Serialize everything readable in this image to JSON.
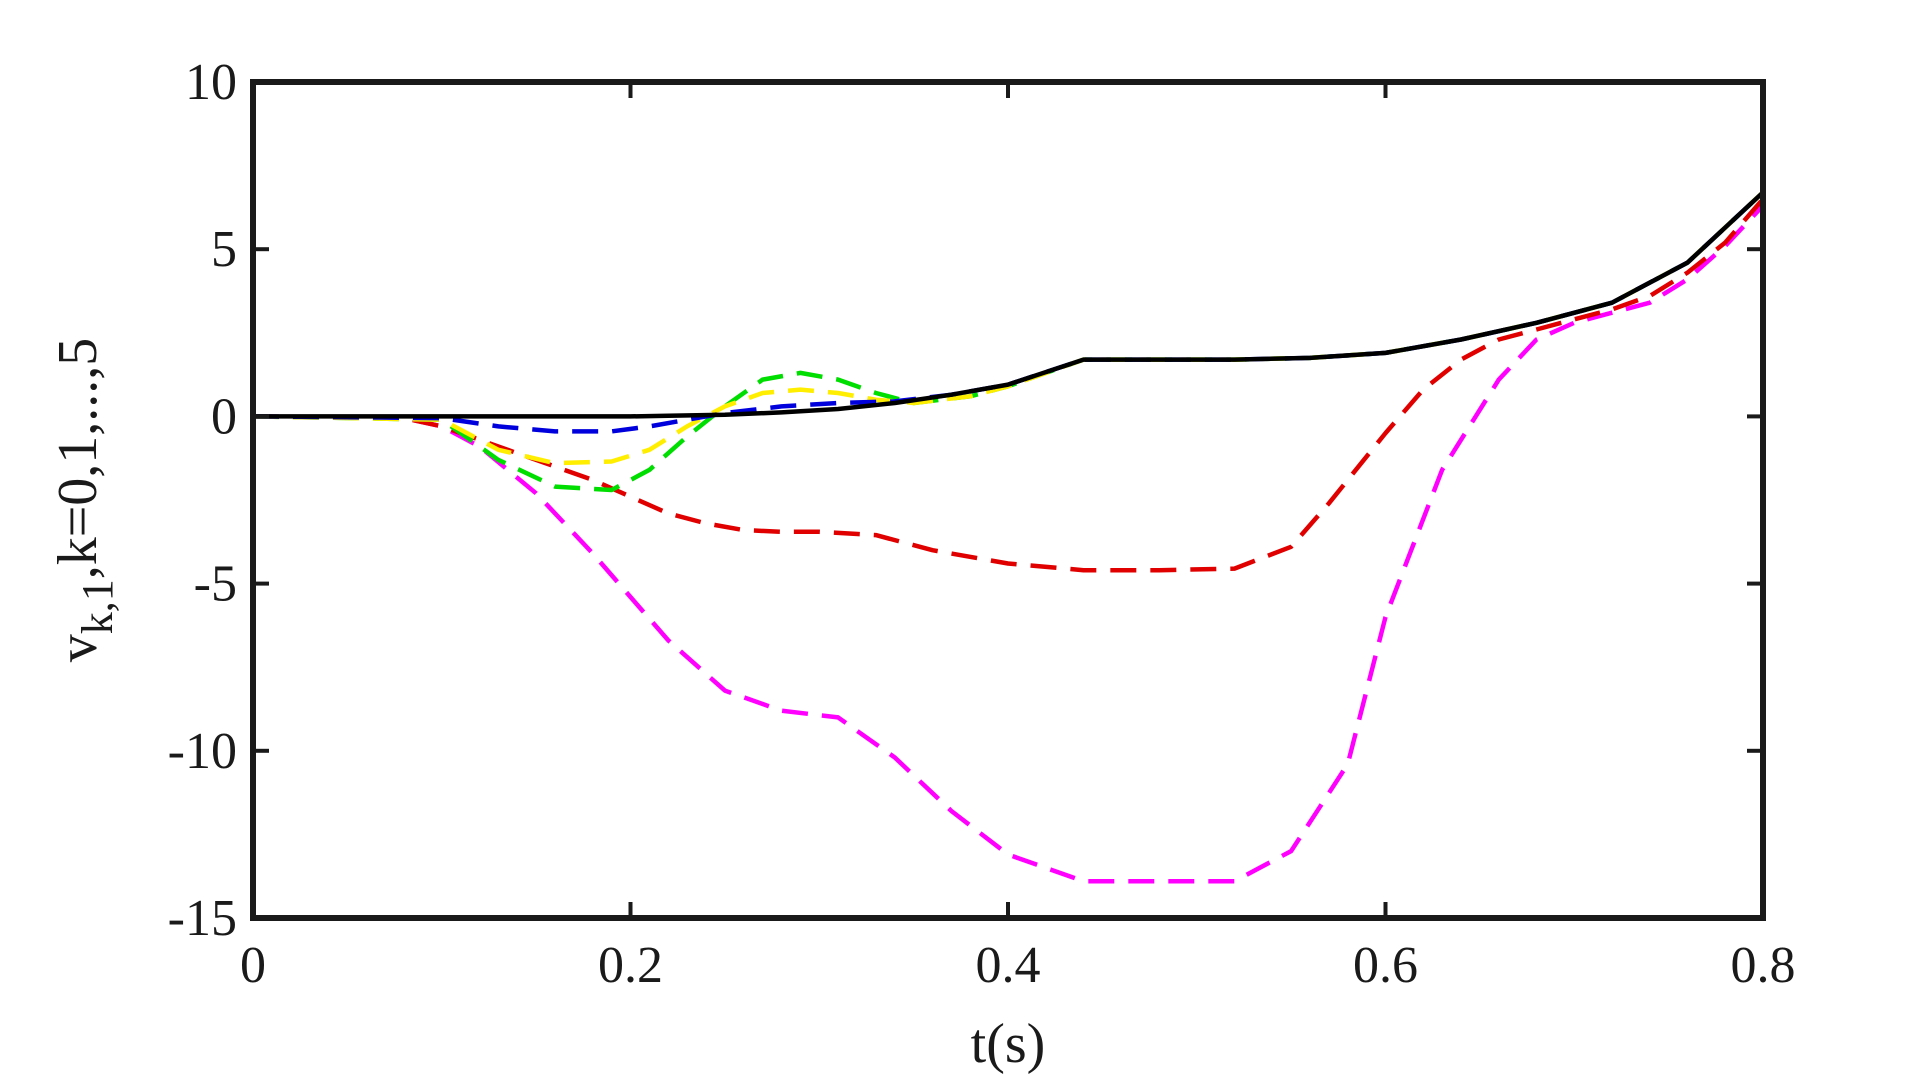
{
  "chart_data": {
    "type": "line",
    "xlabel": "t(s)",
    "ylabel": {
      "base": "v",
      "subscript": "k,1",
      "rest": ",k=0,1,...,5"
    },
    "xlim": [
      0,
      0.8
    ],
    "ylim": [
      -15,
      10
    ],
    "xticks": [
      0,
      0.2,
      0.4,
      0.6,
      0.8
    ],
    "xtick_labels": [
      "0",
      "0.2",
      "0.4",
      "0.6",
      "0.8"
    ],
    "yticks": [
      10,
      5,
      0,
      -5,
      -10,
      -15
    ],
    "ytick_labels": [
      "10",
      "5",
      "0",
      "-5",
      "-10",
      "-15"
    ],
    "grid": false,
    "legend": "none",
    "series": [
      {
        "color": "#ff00ff",
        "style": "dashed",
        "x": [
          0,
          0.08,
          0.1,
          0.12,
          0.15,
          0.18,
          0.2,
          0.22,
          0.25,
          0.28,
          0.31,
          0.34,
          0.37,
          0.4,
          0.44,
          0.48,
          0.52,
          0.55,
          0.58,
          0.6,
          0.63,
          0.66,
          0.68,
          0.7,
          0.72,
          0.74,
          0.76,
          0.78,
          0.8
        ],
        "y": [
          0,
          -0.05,
          -0.3,
          -0.9,
          -2.3,
          -4.1,
          -5.4,
          -6.7,
          -8.2,
          -8.8,
          -9.0,
          -10.2,
          -11.8,
          -13.1,
          -13.9,
          -13.9,
          -13.9,
          -13.0,
          -10.4,
          -6.0,
          -1.6,
          1.1,
          2.3,
          2.8,
          3.1,
          3.4,
          4.1,
          5.1,
          6.3
        ]
      },
      {
        "color": "#e00000",
        "style": "dashed",
        "x": [
          0,
          0.08,
          0.1,
          0.12,
          0.15,
          0.18,
          0.2,
          0.22,
          0.24,
          0.26,
          0.28,
          0.3,
          0.33,
          0.36,
          0.4,
          0.44,
          0.48,
          0.52,
          0.55,
          0.57,
          0.6,
          0.62,
          0.64,
          0.66,
          0.68,
          0.7,
          0.72,
          0.74,
          0.76,
          0.78,
          0.8
        ],
        "y": [
          0,
          -0.05,
          -0.3,
          -0.7,
          -1.3,
          -1.9,
          -2.4,
          -2.9,
          -3.2,
          -3.4,
          -3.45,
          -3.45,
          -3.55,
          -4.0,
          -4.4,
          -4.6,
          -4.6,
          -4.55,
          -3.9,
          -2.6,
          -0.5,
          0.8,
          1.7,
          2.3,
          2.6,
          2.9,
          3.2,
          3.6,
          4.3,
          5.2,
          6.5
        ]
      },
      {
        "color": "#00dd00",
        "style": "dashed",
        "x": [
          0,
          0.1,
          0.13,
          0.16,
          0.19,
          0.21,
          0.23,
          0.25,
          0.27,
          0.29,
          0.31,
          0.33,
          0.35,
          0.38,
          0.4,
          0.44,
          0.48,
          0.52,
          0.56,
          0.6,
          0.64,
          0.68,
          0.72,
          0.76,
          0.8
        ],
        "y": [
          0,
          -0.1,
          -1.3,
          -2.1,
          -2.2,
          -1.6,
          -0.6,
          0.3,
          1.1,
          1.3,
          1.1,
          0.7,
          0.4,
          0.6,
          0.9,
          1.7,
          1.7,
          1.7,
          1.75,
          1.9,
          2.3,
          2.8,
          3.4,
          4.6,
          6.7
        ]
      },
      {
        "color": "#ffee00",
        "style": "dashed",
        "x": [
          0,
          0.1,
          0.13,
          0.16,
          0.19,
          0.21,
          0.23,
          0.25,
          0.27,
          0.29,
          0.31,
          0.33,
          0.35,
          0.38,
          0.4,
          0.44,
          0.48,
          0.52,
          0.56,
          0.6,
          0.64,
          0.68,
          0.72,
          0.76,
          0.8
        ],
        "y": [
          0,
          -0.1,
          -1.0,
          -1.4,
          -1.35,
          -1.0,
          -0.3,
          0.3,
          0.7,
          0.8,
          0.7,
          0.5,
          0.4,
          0.6,
          0.9,
          1.7,
          1.7,
          1.7,
          1.75,
          1.9,
          2.3,
          2.8,
          3.4,
          4.6,
          6.7
        ]
      },
      {
        "color": "#0000dd",
        "style": "dashed",
        "x": [
          0,
          0.1,
          0.13,
          0.16,
          0.19,
          0.21,
          0.23,
          0.25,
          0.28,
          0.31,
          0.34,
          0.37,
          0.4,
          0.44,
          0.48,
          0.52,
          0.56,
          0.6,
          0.64,
          0.68,
          0.72,
          0.76,
          0.8
        ],
        "y": [
          0,
          -0.05,
          -0.3,
          -0.45,
          -0.45,
          -0.3,
          -0.1,
          0.1,
          0.3,
          0.4,
          0.45,
          0.65,
          0.95,
          1.7,
          1.7,
          1.7,
          1.75,
          1.9,
          2.3,
          2.8,
          3.4,
          4.6,
          6.7
        ]
      },
      {
        "color": "#000000",
        "style": "solid",
        "x": [
          0,
          0.1,
          0.2,
          0.22,
          0.25,
          0.28,
          0.31,
          0.34,
          0.37,
          0.4,
          0.44,
          0.48,
          0.52,
          0.56,
          0.6,
          0.64,
          0.68,
          0.72,
          0.76,
          0.8
        ],
        "y": [
          0,
          0,
          0,
          0.02,
          0.05,
          0.12,
          0.22,
          0.4,
          0.65,
          0.95,
          1.7,
          1.7,
          1.7,
          1.75,
          1.9,
          2.3,
          2.8,
          3.4,
          4.6,
          6.7
        ]
      }
    ]
  }
}
